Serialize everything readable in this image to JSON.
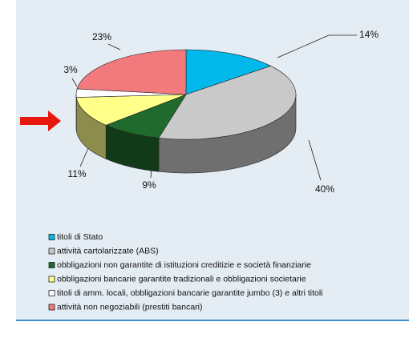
{
  "chart_data": {
    "type": "pie",
    "categories": [
      "titoli di Stato",
      "attività cartolarizzate (ABS)",
      "obbligazioni non garantite di istituzioni creditizie e società finanziarie",
      "obbligazioni bancarie garantite tradizionali e obbligazioni societarie",
      "titoli di amm. locali, obbligazioni bancarie garantite jumbo (3) e altri titoli",
      "attività non negoziabili (prestiti bancari)"
    ],
    "values": [
      14,
      40,
      9,
      11,
      3,
      23
    ],
    "value_labels": [
      "14%",
      "40%",
      "9%",
      "11%",
      "3%",
      "23%"
    ],
    "colors": [
      "#00b8ea",
      "#c9c9c9",
      "#1f6a2c",
      "#ffff8a",
      "#ffffff",
      "#f27a7c"
    ]
  }
}
